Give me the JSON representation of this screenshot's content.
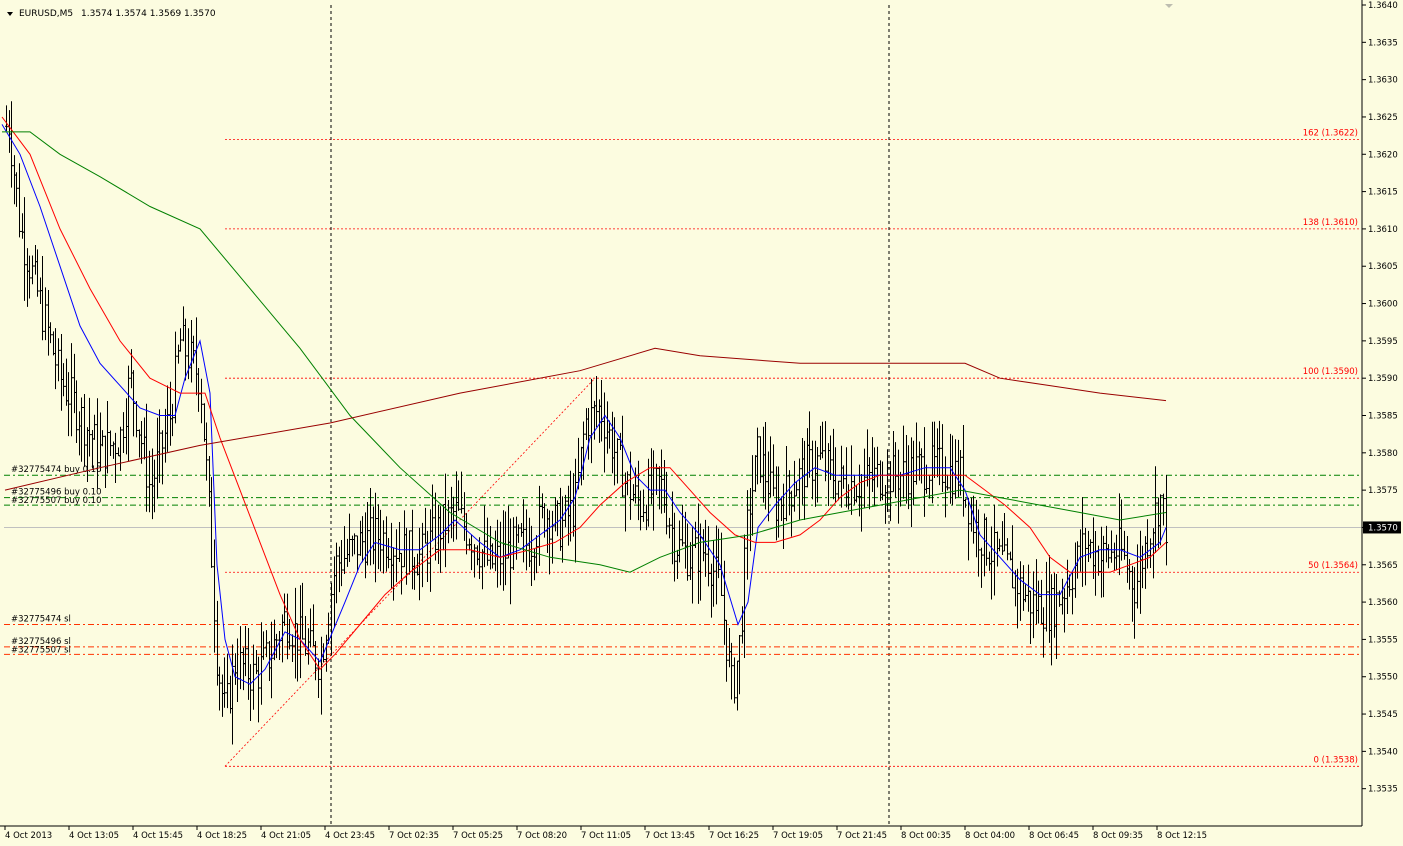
{
  "chart_data": {
    "type": "ohlc",
    "header": {
      "symbol": "EURUSD,M5",
      "ohlc": "1.3574 1.3574 1.3569 1.3570"
    },
    "ylim": [
      1.353,
      1.364
    ],
    "y_ticks": [
      "1.3640",
      "1.3635",
      "1.3630",
      "1.3625",
      "1.3620",
      "1.3615",
      "1.3610",
      "1.3605",
      "1.3600",
      "1.3595",
      "1.3590",
      "1.3585",
      "1.3580",
      "1.3575",
      "1.3570",
      "1.3565",
      "1.3560",
      "1.3555",
      "1.3550",
      "1.3545",
      "1.3540",
      "1.3535"
    ],
    "x_ticks": [
      "4 Oct 2013",
      "4 Oct 13:05",
      "4 Oct 15:45",
      "4 Oct 18:25",
      "4 Oct 21:05",
      "4 Oct 23:45",
      "7 Oct 02:35",
      "7 Oct 05:25",
      "7 Oct 08:20",
      "7 Oct 11:05",
      "7 Oct 13:45",
      "7 Oct 16:25",
      "7 Oct 19:05",
      "7 Oct 21:45",
      "8 Oct 00:35",
      "8 Oct 04:00",
      "8 Oct 06:45",
      "8 Oct 09:35",
      "8 Oct 12:15"
    ],
    "current_price": "1.3570",
    "price_anchors": [
      [
        0,
        1.362
      ],
      [
        8,
        1.3625
      ],
      [
        20,
        1.361
      ],
      [
        40,
        1.36
      ],
      [
        60,
        1.359
      ],
      [
        80,
        1.3585
      ],
      [
        100,
        1.358
      ],
      [
        120,
        1.3582
      ],
      [
        130,
        1.359
      ],
      [
        150,
        1.3575
      ],
      [
        170,
        1.3585
      ],
      [
        180,
        1.3595
      ],
      [
        200,
        1.359
      ],
      [
        210,
        1.357
      ],
      [
        217,
        1.3552
      ],
      [
        225,
        1.3545
      ],
      [
        235,
        1.3552
      ],
      [
        255,
        1.355
      ],
      [
        270,
        1.3553
      ],
      [
        285,
        1.3558
      ],
      [
        300,
        1.3555
      ],
      [
        320,
        1.3552
      ],
      [
        335,
        1.3565
      ],
      [
        360,
        1.3568
      ],
      [
        380,
        1.3569
      ],
      [
        400,
        1.3567
      ],
      [
        420,
        1.3566
      ],
      [
        440,
        1.357
      ],
      [
        455,
        1.3572
      ],
      [
        470,
        1.3569
      ],
      [
        490,
        1.3565
      ],
      [
        510,
        1.3567
      ],
      [
        530,
        1.3568
      ],
      [
        545,
        1.3572
      ],
      [
        560,
        1.357
      ],
      [
        575,
        1.3573
      ],
      [
        585,
        1.3584
      ],
      [
        600,
        1.3586
      ],
      [
        610,
        1.3582
      ],
      [
        625,
        1.3576
      ],
      [
        640,
        1.3573
      ],
      [
        660,
        1.3576
      ],
      [
        675,
        1.3568
      ],
      [
        690,
        1.3566
      ],
      [
        705,
        1.3567
      ],
      [
        720,
        1.3562
      ],
      [
        732,
        1.3548
      ],
      [
        740,
        1.3555
      ],
      [
        748,
        1.3572
      ],
      [
        758,
        1.358
      ],
      [
        775,
        1.3573
      ],
      [
        790,
        1.3575
      ],
      [
        805,
        1.3578
      ],
      [
        820,
        1.3579
      ],
      [
        840,
        1.3576
      ],
      [
        860,
        1.3576
      ],
      [
        880,
        1.3577
      ],
      [
        900,
        1.3577
      ],
      [
        920,
        1.3578
      ],
      [
        940,
        1.3578
      ],
      [
        960,
        1.3577
      ],
      [
        975,
        1.357
      ],
      [
        990,
        1.3567
      ],
      [
        1010,
        1.3564
      ],
      [
        1030,
        1.356
      ],
      [
        1050,
        1.3559
      ],
      [
        1065,
        1.3562
      ],
      [
        1085,
        1.3568
      ],
      [
        1100,
        1.3566
      ],
      [
        1120,
        1.3567
      ],
      [
        1135,
        1.3562
      ],
      [
        1148,
        1.3569
      ],
      [
        1160,
        1.3574
      ],
      [
        1166,
        1.357
      ]
    ],
    "moving_averages": [
      {
        "color": "#0000ff",
        "points": [
          [
            2,
            1.3624
          ],
          [
            20,
            1.362
          ],
          [
            40,
            1.3613
          ],
          [
            60,
            1.3605
          ],
          [
            80,
            1.3597
          ],
          [
            100,
            1.3592
          ],
          [
            120,
            1.3589
          ],
          [
            140,
            1.3586
          ],
          [
            160,
            1.3585
          ],
          [
            175,
            1.3585
          ],
          [
            185,
            1.359
          ],
          [
            200,
            1.3595
          ],
          [
            210,
            1.3588
          ],
          [
            217,
            1.3565
          ],
          [
            225,
            1.3555
          ],
          [
            235,
            1.355
          ],
          [
            250,
            1.3549
          ],
          [
            265,
            1.3551
          ],
          [
            285,
            1.3556
          ],
          [
            300,
            1.3555
          ],
          [
            320,
            1.3552
          ],
          [
            345,
            1.356
          ],
          [
            360,
            1.3565
          ],
          [
            375,
            1.3568
          ],
          [
            400,
            1.3567
          ],
          [
            420,
            1.3567
          ],
          [
            440,
            1.3569
          ],
          [
            455,
            1.3571
          ],
          [
            480,
            1.3568
          ],
          [
            500,
            1.3566
          ],
          [
            520,
            1.3567
          ],
          [
            540,
            1.3569
          ],
          [
            560,
            1.3571
          ],
          [
            575,
            1.3574
          ],
          [
            590,
            1.3582
          ],
          [
            605,
            1.3585
          ],
          [
            620,
            1.3582
          ],
          [
            635,
            1.3577
          ],
          [
            650,
            1.3575
          ],
          [
            665,
            1.3575
          ],
          [
            680,
            1.3572
          ],
          [
            700,
            1.3569
          ],
          [
            720,
            1.3565
          ],
          [
            738,
            1.3557
          ],
          [
            748,
            1.356
          ],
          [
            758,
            1.357
          ],
          [
            775,
            1.3573
          ],
          [
            795,
            1.3576
          ],
          [
            815,
            1.3578
          ],
          [
            835,
            1.3577
          ],
          [
            855,
            1.3577
          ],
          [
            875,
            1.3577
          ],
          [
            900,
            1.3577
          ],
          [
            925,
            1.3578
          ],
          [
            950,
            1.3578
          ],
          [
            965,
            1.3575
          ],
          [
            980,
            1.3569
          ],
          [
            1000,
            1.3566
          ],
          [
            1020,
            1.3563
          ],
          [
            1040,
            1.3561
          ],
          [
            1060,
            1.3561
          ],
          [
            1080,
            1.3566
          ],
          [
            1100,
            1.3567
          ],
          [
            1120,
            1.3567
          ],
          [
            1140,
            1.3566
          ],
          [
            1160,
            1.3568
          ],
          [
            1166,
            1.357
          ]
        ]
      },
      {
        "color": "#ff0000",
        "points": [
          [
            2,
            1.3625
          ],
          [
            30,
            1.362
          ],
          [
            60,
            1.361
          ],
          [
            90,
            1.3602
          ],
          [
            120,
            1.3595
          ],
          [
            150,
            1.359
          ],
          [
            180,
            1.3588
          ],
          [
            205,
            1.3588
          ],
          [
            220,
            1.3582
          ],
          [
            240,
            1.3575
          ],
          [
            260,
            1.3568
          ],
          [
            280,
            1.3561
          ],
          [
            300,
            1.3555
          ],
          [
            320,
            1.3551
          ],
          [
            335,
            1.3553
          ],
          [
            360,
            1.3557
          ],
          [
            385,
            1.3561
          ],
          [
            410,
            1.3564
          ],
          [
            440,
            1.3567
          ],
          [
            470,
            1.3567
          ],
          [
            500,
            1.3566
          ],
          [
            530,
            1.3567
          ],
          [
            555,
            1.3568
          ],
          [
            580,
            1.357
          ],
          [
            600,
            1.3573
          ],
          [
            625,
            1.3576
          ],
          [
            650,
            1.3578
          ],
          [
            670,
            1.3578
          ],
          [
            690,
            1.3575
          ],
          [
            710,
            1.3572
          ],
          [
            735,
            1.3569
          ],
          [
            755,
            1.3568
          ],
          [
            775,
            1.3568
          ],
          [
            800,
            1.3569
          ],
          [
            820,
            1.3571
          ],
          [
            840,
            1.3574
          ],
          [
            860,
            1.3576
          ],
          [
            880,
            1.3577
          ],
          [
            910,
            1.3577
          ],
          [
            940,
            1.3577
          ],
          [
            965,
            1.3577
          ],
          [
            985,
            1.3575
          ],
          [
            1005,
            1.3573
          ],
          [
            1030,
            1.357
          ],
          [
            1050,
            1.3566
          ],
          [
            1070,
            1.3564
          ],
          [
            1090,
            1.3564
          ],
          [
            1110,
            1.3564
          ],
          [
            1130,
            1.3565
          ],
          [
            1150,
            1.3566
          ],
          [
            1166,
            1.3568
          ]
        ]
      },
      {
        "color": "#008000",
        "points": [
          [
            2,
            1.3623
          ],
          [
            30,
            1.3623
          ],
          [
            60,
            1.362
          ],
          [
            100,
            1.3617
          ],
          [
            150,
            1.3613
          ],
          [
            200,
            1.361
          ],
          [
            250,
            1.3602
          ],
          [
            300,
            1.3594
          ],
          [
            350,
            1.3585
          ],
          [
            400,
            1.3578
          ],
          [
            450,
            1.3572
          ],
          [
            500,
            1.3568
          ],
          [
            550,
            1.3566
          ],
          [
            600,
            1.3565
          ],
          [
            630,
            1.3564
          ],
          [
            660,
            1.3566
          ],
          [
            700,
            1.3568
          ],
          [
            750,
            1.3569
          ],
          [
            800,
            1.3571
          ],
          [
            840,
            1.3572
          ],
          [
            880,
            1.3573
          ],
          [
            920,
            1.3574
          ],
          [
            960,
            1.3575
          ],
          [
            1000,
            1.3574
          ],
          [
            1040,
            1.3573
          ],
          [
            1080,
            1.3572
          ],
          [
            1120,
            1.3571
          ],
          [
            1166,
            1.3572
          ]
        ]
      },
      {
        "color": "#990000",
        "points": [
          [
            5,
            1.3575
          ],
          [
            100,
            1.3578
          ],
          [
            200,
            1.3581
          ],
          [
            330,
            1.3584
          ],
          [
            460,
            1.3588
          ],
          [
            580,
            1.3591
          ],
          [
            655,
            1.3594
          ],
          [
            700,
            1.3593
          ],
          [
            800,
            1.3592
          ],
          [
            900,
            1.3592
          ],
          [
            965,
            1.3592
          ],
          [
            1000,
            1.359
          ],
          [
            1050,
            1.3589
          ],
          [
            1100,
            1.3588
          ],
          [
            1166,
            1.3587
          ]
        ]
      }
    ],
    "fibo_levels": [
      {
        "label": "162 (1.3622)",
        "price": 1.3622
      },
      {
        "label": "138 (1.3610)",
        "price": 1.361
      },
      {
        "label": "100 (1.3590)",
        "price": 1.359
      },
      {
        "label": "50 (1.3564)",
        "price": 1.3564
      },
      {
        "label": "0 (1.3538)",
        "price": 1.3538
      }
    ],
    "fibo_trend": [
      [
        225,
        1.3538
      ],
      [
        595,
        1.359
      ]
    ],
    "order_lines": [
      {
        "label": "#32775474 buy 0.10",
        "price": 1.3577,
        "kind": "entry"
      },
      {
        "label": "#32775496 buy 0.10",
        "price": 1.3574,
        "kind": "entry"
      },
      {
        "label": "#32775507 buy 0.10",
        "price": 1.3573,
        "kind": "entry"
      },
      {
        "label": "#32775474 sl",
        "price": 1.3557,
        "kind": "sl"
      },
      {
        "label": "#32775496 sl",
        "price": 1.3554,
        "kind": "sl"
      },
      {
        "label": "#32775507 sl",
        "price": 1.3553,
        "kind": "sl"
      }
    ],
    "period_separators": [
      331,
      889
    ],
    "colors": {
      "background": "#fcfce0",
      "bars": "#000000",
      "fibo": "#ff0000",
      "order_entry": "#008000",
      "order_sl": "#ff3300",
      "grid": "#ff0000"
    }
  }
}
